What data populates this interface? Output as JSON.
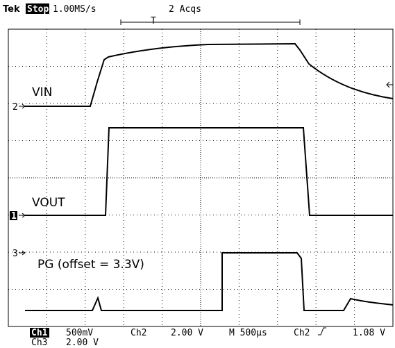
{
  "header": {
    "brand": "Tek",
    "state": "Stop:",
    "sample_rate": "1.00MS/s",
    "acquisitions": "2 Acqs",
    "trigger_marker": "T"
  },
  "markers": {
    "ch2": "2",
    "ch1": "1",
    "ch3": "3"
  },
  "traces": {
    "vin": "VIN",
    "vout": "VOUT",
    "pg": "PG (offset = 3.3V)"
  },
  "footer": {
    "ch1": "Ch1",
    "ch1_scale": "500mV",
    "ch2": "Ch2",
    "ch2_scale": "2.00 V",
    "timebase": "M 500µs",
    "trigger_source": "Ch2",
    "trigger_level": "1.08 V",
    "ch3": "Ch3",
    "ch3_scale": "2.00 V"
  }
}
